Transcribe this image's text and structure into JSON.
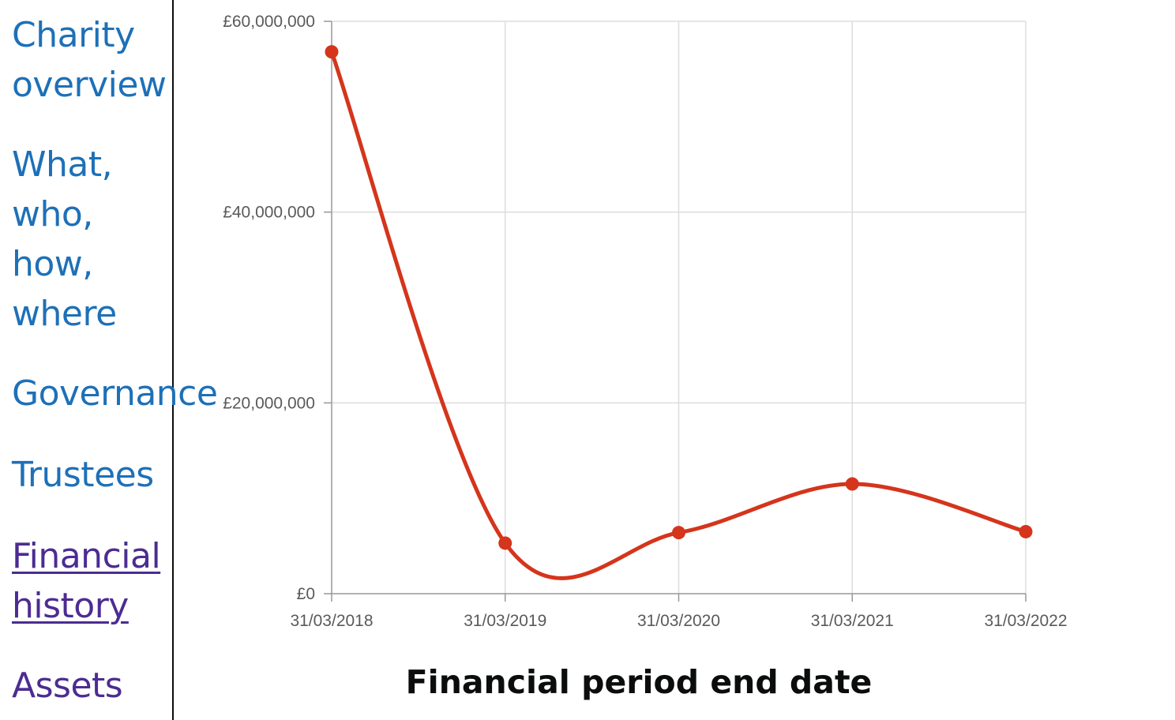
{
  "nav": {
    "items": [
      {
        "label": "Charity\noverview",
        "state": "link"
      },
      {
        "label": "What,\nwho,\nhow,\nwhere",
        "state": "link"
      },
      {
        "label": "Governance",
        "state": "link"
      },
      {
        "label": "Trustees",
        "state": "link"
      },
      {
        "label": "Financial\nhistory",
        "state": "current"
      },
      {
        "label": "Assets",
        "state": "visited"
      }
    ]
  },
  "colors": {
    "link": "#1d70b8",
    "visited": "#4c2c92",
    "series": "#d4351c",
    "grid": "#dddddd",
    "axis": "#999999"
  },
  "chart_data": {
    "type": "line",
    "smooth": true,
    "x": [
      "31/03/2018",
      "31/03/2019",
      "31/03/2020",
      "31/03/2021",
      "31/03/2022"
    ],
    "series": [
      {
        "values": [
          56800000,
          5300000,
          6400000,
          11500000,
          6500000
        ]
      }
    ],
    "ylim": [
      0,
      60000000
    ],
    "y_ticks": [
      "£0",
      "£20,000,000",
      "£40,000,000",
      "£60,000,000"
    ],
    "y_tick_values": [
      0,
      20000000,
      40000000,
      60000000
    ],
    "xlabel": "Financial period end date",
    "ylabel": "",
    "grid": true
  }
}
